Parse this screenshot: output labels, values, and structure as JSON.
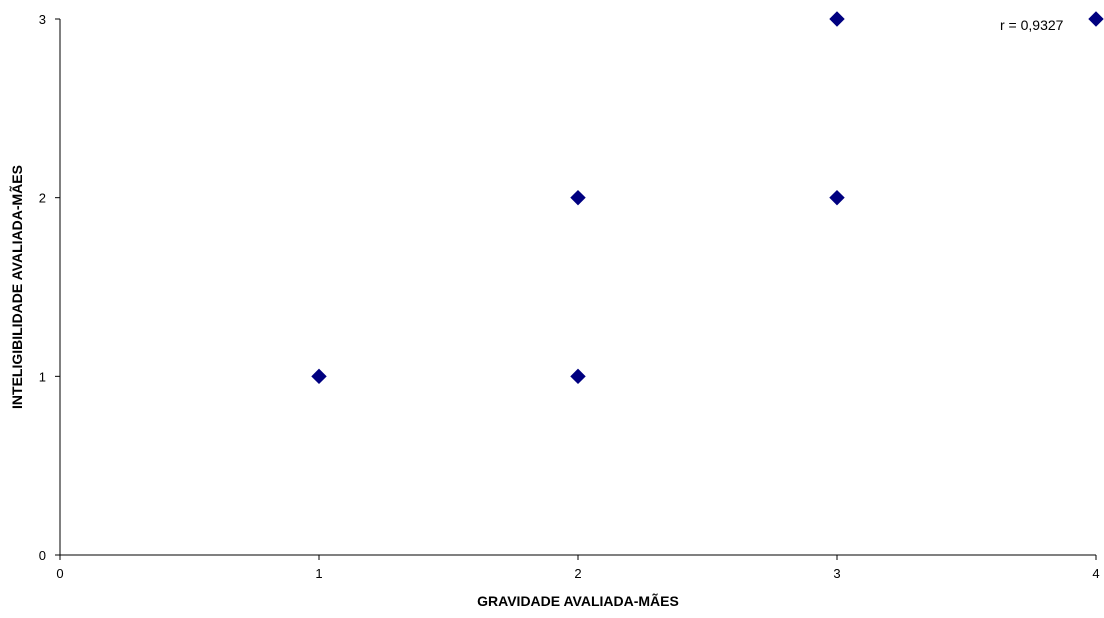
{
  "chart_data": {
    "type": "scatter",
    "title": "",
    "xlabel": "GRAVIDADE AVALIADA-MÃES",
    "ylabel": "INTELIGIBILIDADE AVALIADA-MÃES",
    "xlim": [
      0,
      4
    ],
    "ylim": [
      0,
      3
    ],
    "x_ticks": [
      "0",
      "1",
      "2",
      "3",
      "4"
    ],
    "y_ticks": [
      "0",
      "1",
      "2",
      "3"
    ],
    "grid": false,
    "legend": "none",
    "marker": "diamond",
    "marker_color": "#000080",
    "points": [
      {
        "x": 1,
        "y": 1
      },
      {
        "x": 2,
        "y": 1
      },
      {
        "x": 2,
        "y": 2
      },
      {
        "x": 3,
        "y": 2
      },
      {
        "x": 3,
        "y": 3
      },
      {
        "x": 4,
        "y": 3
      }
    ],
    "annotation": "r = 0,9327"
  }
}
